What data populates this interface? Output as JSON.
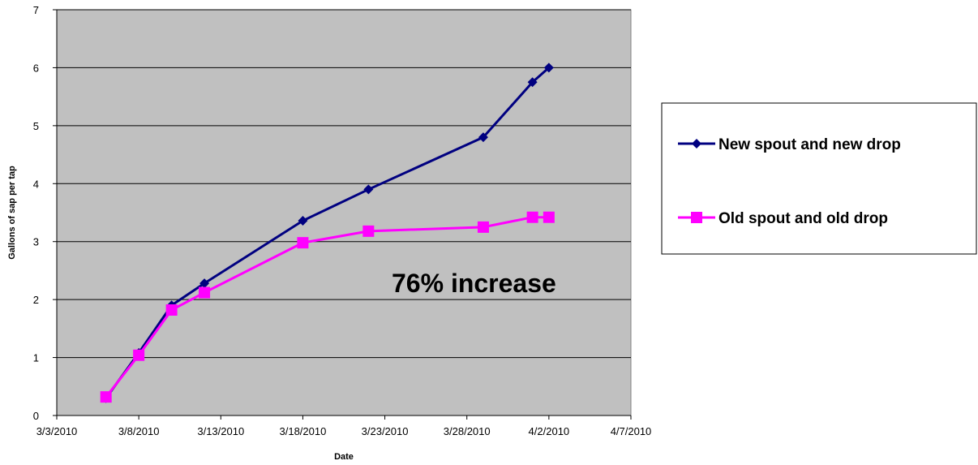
{
  "chart_data": {
    "type": "line",
    "title": "",
    "xlabel": "Date",
    "ylabel": "Gallons of sap per tap",
    "xlim": [
      "3/3/2010",
      "4/7/2010"
    ],
    "ylim": [
      0,
      7
    ],
    "x_ticks": [
      "3/3/2010",
      "3/8/2010",
      "3/13/2010",
      "3/18/2010",
      "3/23/2010",
      "3/28/2010",
      "4/2/2010",
      "4/7/2010"
    ],
    "y_ticks": [
      "0",
      "1",
      "2",
      "3",
      "4",
      "5",
      "6",
      "7"
    ],
    "grid": "horizontal",
    "plot_background": "#c0c0c0",
    "legend_position": "right",
    "annotation": "76% increase",
    "series": [
      {
        "name": "New spout and new drop",
        "color": "#000080",
        "marker": "diamond",
        "points": [
          {
            "x": "3/6/2010",
            "y": 0.3
          },
          {
            "x": "3/8/2010",
            "y": 1.08
          },
          {
            "x": "3/10/2010",
            "y": 1.9
          },
          {
            "x": "3/12/2010",
            "y": 2.28
          },
          {
            "x": "3/18/2010",
            "y": 3.36
          },
          {
            "x": "3/22/2010",
            "y": 3.9
          },
          {
            "x": "3/29/2010",
            "y": 4.8
          },
          {
            "x": "4/1/2010",
            "y": 5.75
          },
          {
            "x": "4/2/2010",
            "y": 6.0
          }
        ]
      },
      {
        "name": "Old spout and old drop",
        "color": "#ff00ff",
        "marker": "square",
        "points": [
          {
            "x": "3/6/2010",
            "y": 0.32
          },
          {
            "x": "3/8/2010",
            "y": 1.04
          },
          {
            "x": "3/10/2010",
            "y": 1.82
          },
          {
            "x": "3/12/2010",
            "y": 2.12
          },
          {
            "x": "3/18/2010",
            "y": 2.98
          },
          {
            "x": "3/22/2010",
            "y": 3.18
          },
          {
            "x": "3/29/2010",
            "y": 3.25
          },
          {
            "x": "4/1/2010",
            "y": 3.42
          },
          {
            "x": "4/2/2010",
            "y": 3.42
          }
        ]
      }
    ]
  }
}
